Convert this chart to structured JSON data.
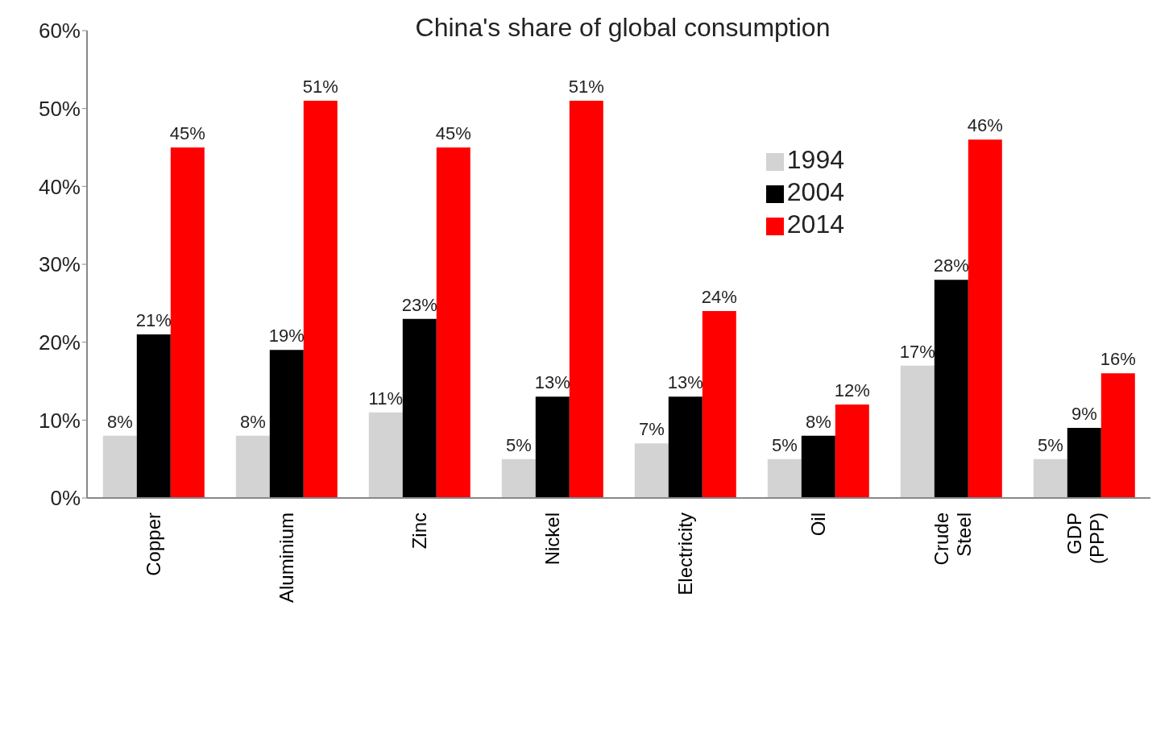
{
  "chart_data": {
    "type": "bar",
    "title": "China's share of global consumption",
    "categories": [
      "Copper",
      "Aluminium",
      "Zinc",
      "Nickel",
      "Electricity",
      "Oil",
      "Crude Steel",
      "GDP (PPP)"
    ],
    "series": [
      {
        "name": "1994",
        "color": "#d3d3d3",
        "values": [
          8,
          8,
          11,
          5,
          7,
          5,
          17,
          5
        ],
        "value_labels": [
          "8%",
          "8%",
          "11%",
          "5%",
          "7%",
          "5%",
          "17%",
          "5%"
        ]
      },
      {
        "name": "2004",
        "color": "#000000",
        "values": [
          21,
          19,
          23,
          13,
          13,
          8,
          28,
          9
        ],
        "value_labels": [
          "21%",
          "19%",
          "23%",
          "13%",
          "13%",
          "8%",
          "28%",
          "9%"
        ]
      },
      {
        "name": "2014",
        "color": "#ff0000",
        "values": [
          45,
          51,
          45,
          51,
          24,
          12,
          46,
          16
        ],
        "value_labels": [
          "45%",
          "51%",
          "45%",
          "51%",
          "24%",
          "12%",
          "46%",
          "16%"
        ]
      }
    ],
    "ylim": [
      0,
      60
    ],
    "yticks": [
      {
        "value": 0,
        "label": "0%"
      },
      {
        "value": 10,
        "label": "10%"
      },
      {
        "value": 20,
        "label": "20%"
      },
      {
        "value": 30,
        "label": "30%"
      },
      {
        "value": 40,
        "label": "40%"
      },
      {
        "value": 50,
        "label": "50%"
      },
      {
        "value": 60,
        "label": "60%"
      }
    ],
    "grid": false,
    "legend": "top right"
  }
}
